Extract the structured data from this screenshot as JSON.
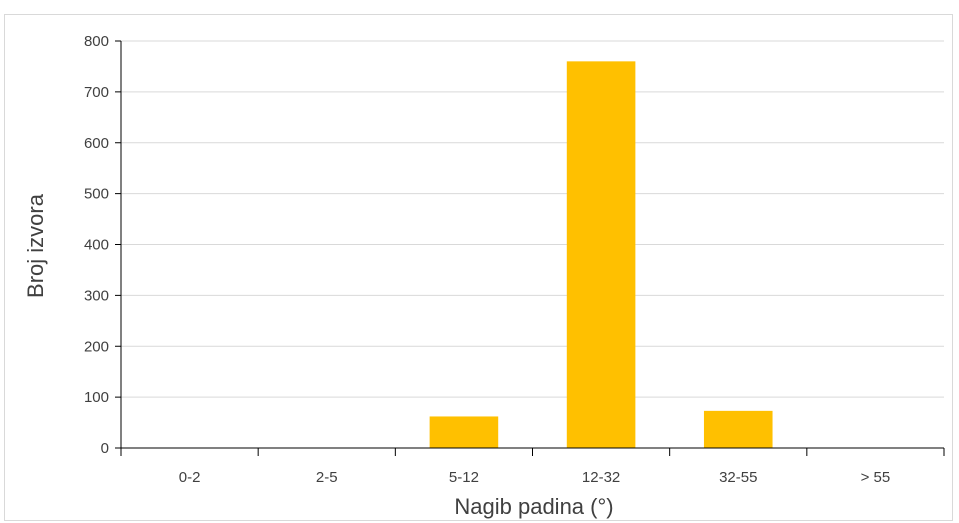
{
  "chart_data": {
    "type": "bar",
    "categories": [
      "0-2",
      "2-5",
      "5-12",
      "12-32",
      "32-55",
      "> 55"
    ],
    "values": [
      0,
      0,
      62,
      760,
      73,
      0
    ],
    "title": "",
    "xlabel": "Nagib padina (°)",
    "ylabel": "Broj izvora",
    "ylim": [
      0,
      800
    ],
    "yticks": [
      0,
      100,
      200,
      300,
      400,
      500,
      600,
      700,
      800
    ],
    "grid": true,
    "legend": "none",
    "bar_color": "#FFC000",
    "grid_color": "#d9d9d9",
    "axis_color": "#000000"
  }
}
